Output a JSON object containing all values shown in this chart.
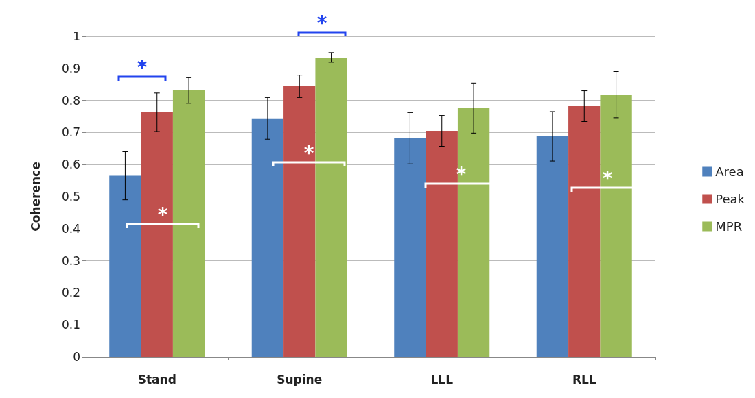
{
  "chart_data": {
    "type": "bar",
    "ylabel": "Coherence",
    "categories": [
      "Stand",
      "Supine",
      "LLL",
      "RLL"
    ],
    "series": [
      {
        "name": "Area",
        "color": "#4f81bd",
        "values": [
          0.565,
          0.744,
          0.682,
          0.688
        ],
        "errors": [
          0.075,
          0.065,
          0.08,
          0.077
        ]
      },
      {
        "name": "Peak",
        "color": "#c0504d",
        "values": [
          0.763,
          0.844,
          0.705,
          0.782
        ],
        "errors": [
          0.06,
          0.035,
          0.048,
          0.048
        ]
      },
      {
        "name": "MPR",
        "color": "#9bbb59",
        "values": [
          0.831,
          0.934,
          0.776,
          0.818
        ],
        "errors": [
          0.04,
          0.015,
          0.078,
          0.072
        ]
      }
    ],
    "ylim": [
      0,
      1
    ],
    "yticks": [
      0,
      0.1,
      0.2,
      0.3,
      0.4,
      0.5,
      0.6,
      0.7,
      0.8,
      0.9,
      1
    ],
    "grid": "y",
    "legend": "right",
    "annotations": [
      "*",
      "*",
      "*",
      "*",
      "*",
      "*"
    ]
  }
}
